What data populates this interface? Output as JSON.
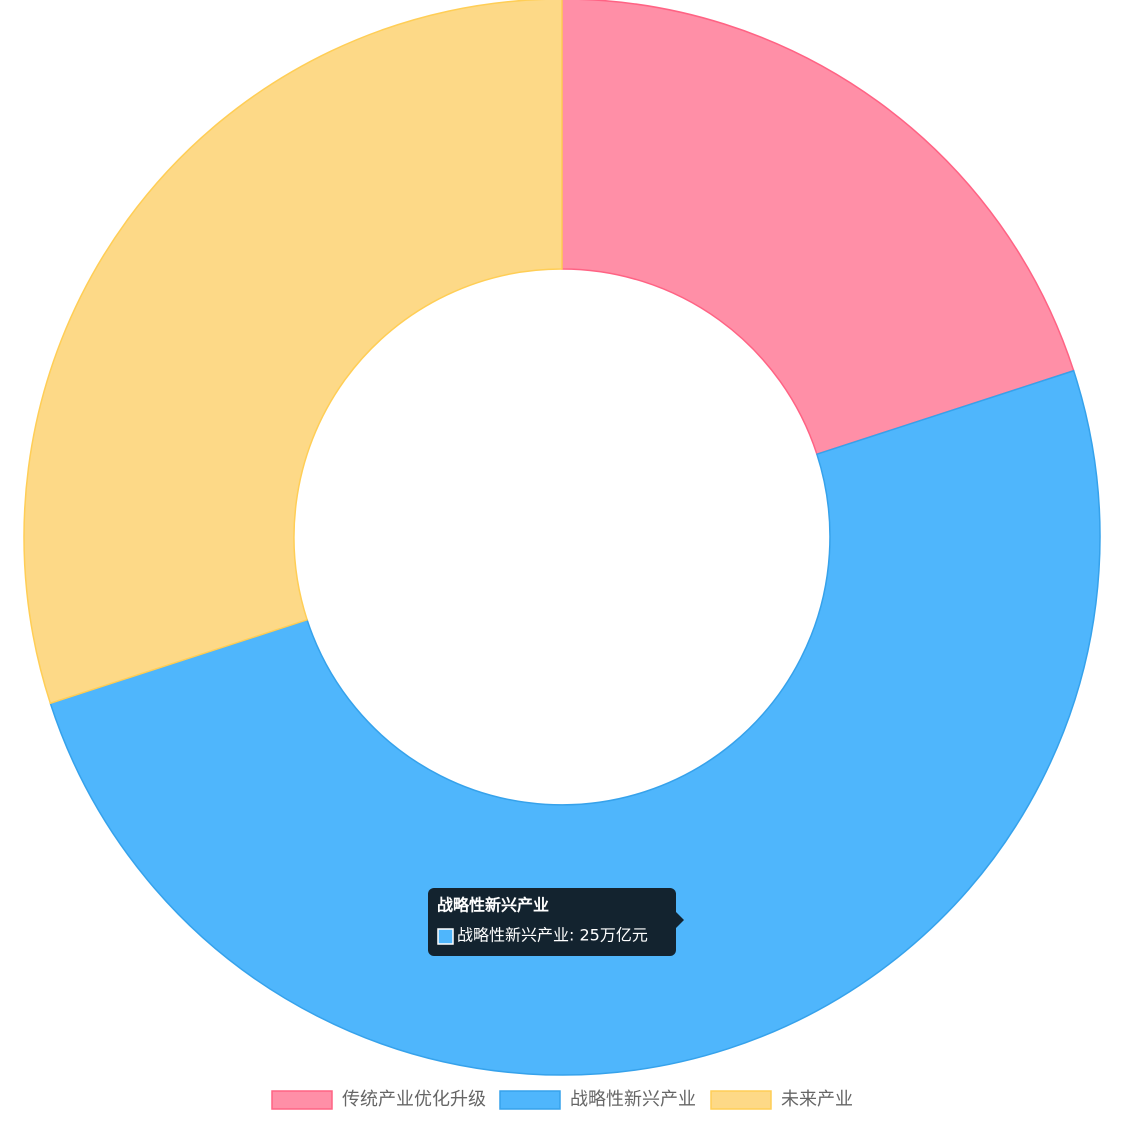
{
  "chart_data": {
    "type": "doughnut",
    "categories": [
      "传统产业优化升级",
      "战略性新兴产业",
      "未来产业"
    ],
    "values": [
      10,
      25,
      15
    ],
    "colors": [
      "#ff8fa7",
      "#4fb6fc",
      "#fdd987"
    ],
    "borders": [
      "#ff6384",
      "#36a2eb",
      "#ffce56"
    ],
    "legend": "bottom",
    "tooltip": {
      "title": "战略性新兴产业",
      "text": "战略性新兴产业: 25万亿元"
    }
  }
}
